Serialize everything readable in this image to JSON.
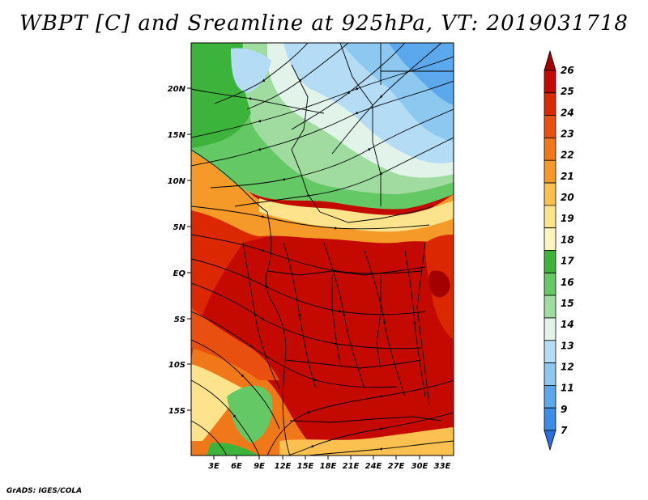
{
  "title": "WBPT [C] and Sreamline at 925hPa, VT: 2019031718",
  "credit": "GrADS: IGES/COLA",
  "map": {
    "lat_labels": [
      "20N",
      "15N",
      "10N",
      "5N",
      "EQ",
      "5S",
      "10S",
      "15S"
    ],
    "lon_labels": [
      "3E",
      "6E",
      "9E",
      "12E",
      "15E",
      "18E",
      "21E",
      "24E",
      "27E",
      "30E",
      "33E"
    ]
  },
  "colorbar": {
    "labels": [
      "26",
      "25",
      "24",
      "23",
      "22",
      "21",
      "20",
      "19",
      "18",
      "17",
      "16",
      "15",
      "14",
      "13",
      "12",
      "11",
      "9",
      "7"
    ],
    "colors": [
      "#a50000",
      "#c40a00",
      "#dc2800",
      "#e95010",
      "#f07818",
      "#f59a28",
      "#fbc050",
      "#fde48c",
      "#fdf6c0",
      "#3cb43c",
      "#64c864",
      "#a0dca0",
      "#e2f4ea",
      "#b4dcf4",
      "#8cc8f0",
      "#5ca8ec",
      "#3c8ce8",
      "#2a6ee0"
    ]
  }
}
